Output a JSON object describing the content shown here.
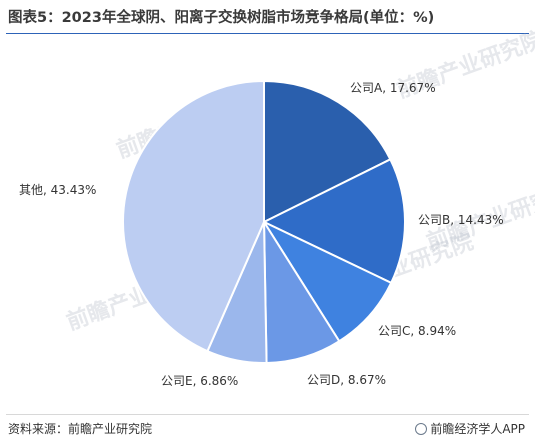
{
  "header": {
    "title": "图表5：2023年全球阴、阳离子交换树脂市场竞争格局(单位：%)"
  },
  "footer": {
    "source": "资料来源：前瞻产业研究院",
    "brand": "前瞻经济学人APP"
  },
  "watermark": {
    "text": "前瞻产业研究院"
  },
  "chart_data": {
    "type": "pie",
    "title": "图表5：2023年全球阴、阳离子交换树脂市场竞争格局(单位：%)",
    "slices": [
      {
        "name": "公司A",
        "value": 17.67,
        "label": "公司A, 17.67%",
        "color": "#2a5fad"
      },
      {
        "name": "公司B",
        "value": 14.43,
        "label": "公司B, 14.43%",
        "color": "#2f6cc8"
      },
      {
        "name": "公司C",
        "value": 8.94,
        "label": "公司C, 8.94%",
        "color": "#3f82e0"
      },
      {
        "name": "公司D",
        "value": 8.67,
        "label": "公司D, 8.67%",
        "color": "#6b98e6"
      },
      {
        "name": "公司E",
        "value": 6.86,
        "label": "公司E, 6.86%",
        "color": "#9bb7ec"
      },
      {
        "name": "其他",
        "value": 43.43,
        "label": "其他, 43.43%",
        "color": "#bccdf2"
      }
    ]
  }
}
